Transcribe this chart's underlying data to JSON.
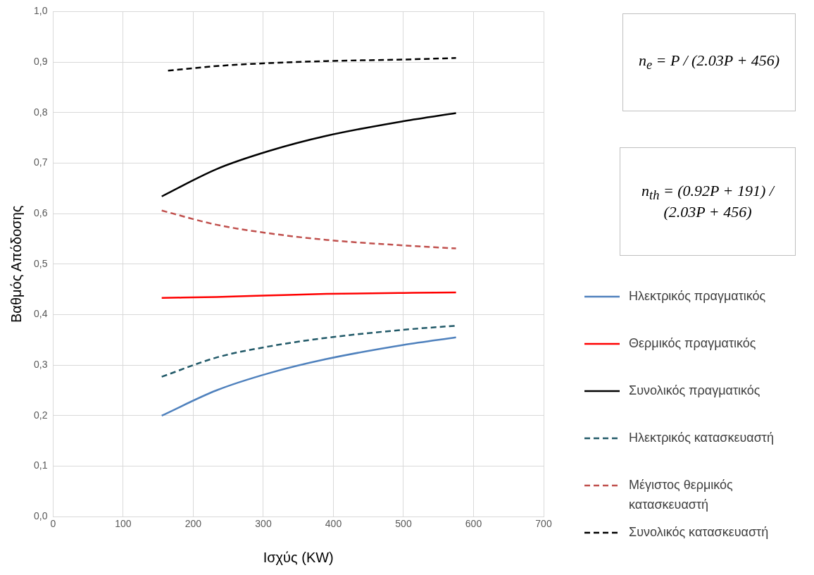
{
  "chart_data": {
    "type": "line",
    "xlabel": "Ισχύς (KW)",
    "ylabel": "Βαθμός Απόδοσης",
    "xlim": [
      0,
      700
    ],
    "xticks": [
      0,
      100,
      200,
      300,
      400,
      500,
      600,
      700
    ],
    "ylim": [
      0,
      1
    ],
    "yticks": [
      {
        "value": 0,
        "label": "0,0"
      },
      {
        "value": 0.1,
        "label": "0,1"
      },
      {
        "value": 0.2,
        "label": "0,2"
      },
      {
        "value": 0.3,
        "label": "0,3"
      },
      {
        "value": 0.4,
        "label": "0,4"
      },
      {
        "value": 0.5,
        "label": "0,5"
      },
      {
        "value": 0.6,
        "label": "0,6"
      },
      {
        "value": 0.7,
        "label": "0,7"
      },
      {
        "value": 0.8,
        "label": "0,8"
      },
      {
        "value": 0.9,
        "label": "0,9"
      },
      {
        "value": 1,
        "label": "1,0"
      }
    ],
    "grid": true,
    "legend": "right",
    "marker": "none",
    "x": [
      155,
      233,
      308,
      390,
      500,
      575
    ],
    "series": [
      {
        "name": "Ηλεκτρικός πραγματικός",
        "color": "#4f81bd",
        "line_style": "solid",
        "values": [
          0.2,
          0.25,
          0.284,
          0.312,
          0.34,
          0.355
        ]
      },
      {
        "name": "Θερμικός πραγματικός",
        "color": "#ff0000",
        "line_style": "solid",
        "values": [
          0.433,
          0.435,
          0.438,
          0.441,
          0.443,
          0.444
        ]
      },
      {
        "name": "Συνολικός πραγματικός",
        "color": "#000000",
        "line_style": "solid",
        "values": [
          0.634,
          0.688,
          0.724,
          0.754,
          0.783,
          0.799
        ]
      },
      {
        "name": "Ηλεκτρικός κατασκευαστή",
        "color": "#215968",
        "line_style": "dashed",
        "values": [
          0.277,
          0.315,
          0.337,
          0.354,
          0.37,
          0.378
        ]
      },
      {
        "name": "Μέγιστος θερμικός κατασκευαστή",
        "color": "#c0504d",
        "line_style": "dashed",
        "values": [
          0.606,
          0.578,
          0.561,
          0.548,
          0.537,
          0.531
        ]
      },
      {
        "name": "Συνολικός κατασκευαστή",
        "color": "#000000",
        "line_style": "dashed",
        "x": [
          164,
          233,
          308,
          390,
          500,
          575
        ],
        "values": [
          0.883,
          0.892,
          0.898,
          0.902,
          0.905,
          0.908
        ]
      }
    ],
    "annotations": [
      "n$_{e}$ = P / (2.03P + 456)",
      "n$_{th}$ = (0.92P + 191) / (2.03P + 456)"
    ]
  }
}
